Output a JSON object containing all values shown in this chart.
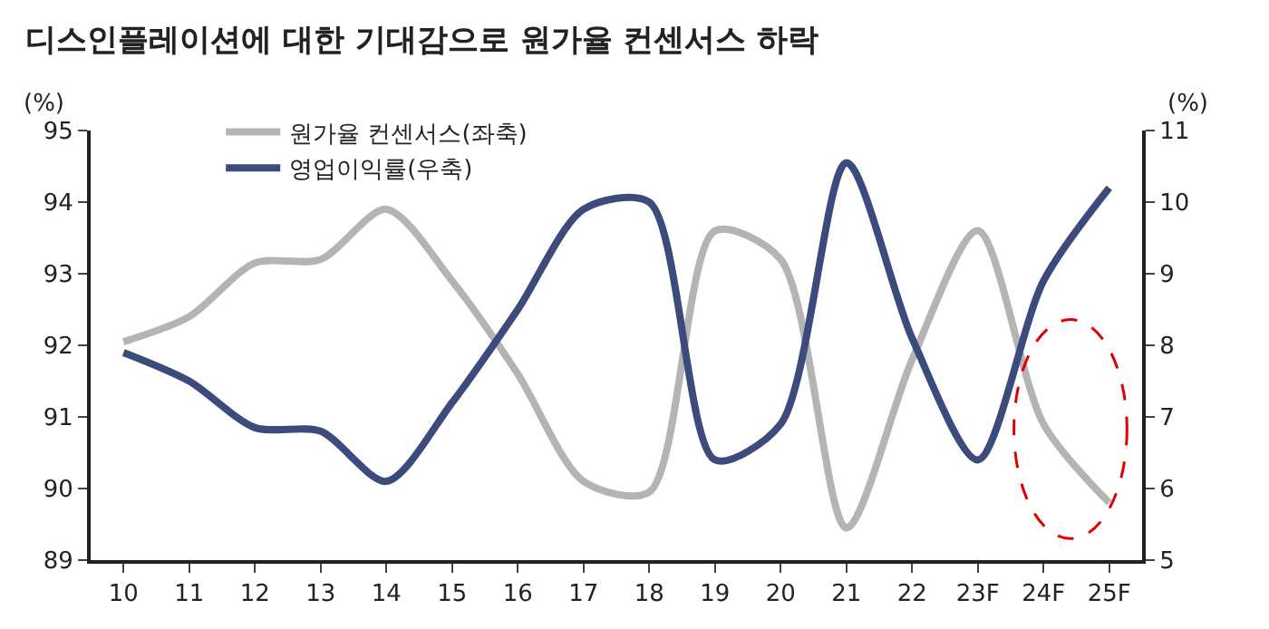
{
  "chart_data": {
    "type": "line",
    "title": "디스인플레이션에 대한 기대감으로 원가율 컨센서스 하락",
    "ylabel": "(%)",
    "y2label": "(%)",
    "categories": [
      "10",
      "11",
      "12",
      "13",
      "14",
      "15",
      "16",
      "17",
      "18",
      "19",
      "20",
      "21",
      "22",
      "23F",
      "24F",
      "25F"
    ],
    "series": [
      {
        "name": "원가율 컨센서스(좌축)",
        "color": "#b4b4b4",
        "values": [
          92.05,
          92.4,
          93.15,
          93.2,
          93.9,
          92.9,
          91.6,
          90.1,
          89.95,
          93.6,
          93.2,
          89.45,
          91.8,
          93.6,
          90.9,
          89.8
        ]
      },
      {
        "name": "영업이익률(우축)",
        "color": "#3c4a7c",
        "axis": "y2",
        "values": [
          7.9,
          7.5,
          6.85,
          6.8,
          6.1,
          7.2,
          8.5,
          9.9,
          10.0,
          6.4,
          6.9,
          10.55,
          8.1,
          6.4,
          8.9,
          10.2
        ]
      }
    ],
    "ylim": [
      89,
      95
    ],
    "yticks": [
      89,
      90,
      91,
      92,
      93,
      94,
      95
    ],
    "y2lim": [
      5,
      11
    ],
    "y2ticks": [
      5,
      6,
      7,
      8,
      9,
      10,
      11
    ],
    "legend": "top left",
    "marker": "none",
    "line_style": "solid"
  }
}
